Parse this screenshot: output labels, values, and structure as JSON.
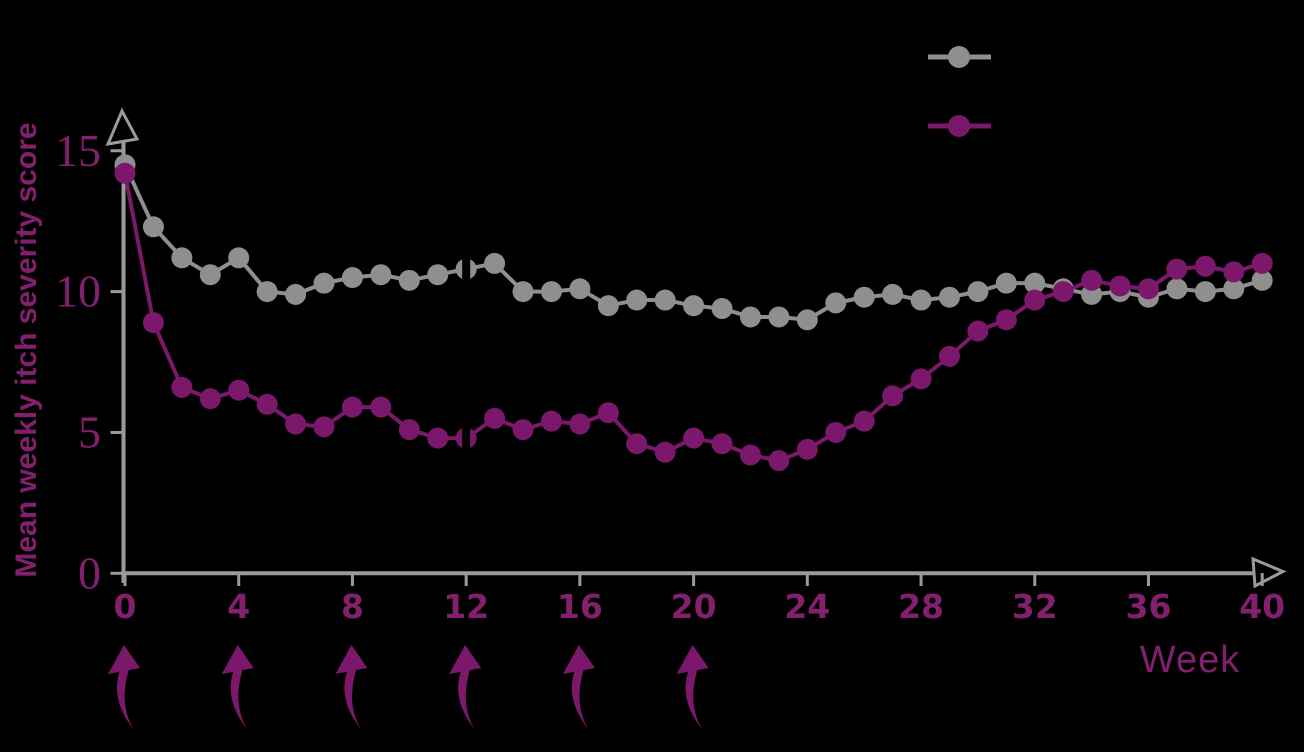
{
  "chart_data": {
    "type": "line",
    "title": "",
    "xlabel": "Week",
    "ylabel": "Mean weekly itch severity score",
    "xlim": [
      0,
      41.5
    ],
    "ylim": [
      0,
      16.4
    ],
    "x_ticks": [
      0,
      4,
      8,
      12,
      16,
      20,
      24,
      28,
      32,
      36,
      40
    ],
    "y_ticks": [
      0,
      5,
      10,
      15
    ],
    "grid": false,
    "x": [
      0,
      1,
      2,
      3,
      4,
      5,
      6,
      7,
      8,
      9,
      10,
      11,
      12,
      13,
      14,
      15,
      16,
      17,
      18,
      19,
      20,
      21,
      22,
      23,
      24,
      25,
      26,
      27,
      28,
      29,
      30,
      31,
      32,
      33,
      34,
      35,
      36,
      37,
      38,
      39,
      40
    ],
    "series": [
      {
        "name": "gray-series",
        "color": "#8f8f8f",
        "marker": "circle",
        "values": [
          14.5,
          12.3,
          11.2,
          10.6,
          11.2,
          10.0,
          9.9,
          10.3,
          10.5,
          10.6,
          10.4,
          10.6,
          10.8,
          11.0,
          10.0,
          10.0,
          10.1,
          9.5,
          9.7,
          9.7,
          9.5,
          9.4,
          9.1,
          9.1,
          9.0,
          9.6,
          9.8,
          9.9,
          9.7,
          9.8,
          10.0,
          10.3,
          10.3,
          10.1,
          9.9,
          10.0,
          9.8,
          10.1,
          10.0,
          10.1,
          10.4
        ]
      },
      {
        "name": "purple-series",
        "color": "#7c186c",
        "marker": "circle",
        "values": [
          14.2,
          8.9,
          6.6,
          6.2,
          6.5,
          6.0,
          5.3,
          5.2,
          5.9,
          5.9,
          5.1,
          4.8,
          4.8,
          5.5,
          5.1,
          5.4,
          5.3,
          5.7,
          4.6,
          4.3,
          4.8,
          4.6,
          4.2,
          4.0,
          4.4,
          5.0,
          5.4,
          6.3,
          6.9,
          7.7,
          8.6,
          9.0,
          9.7,
          10.0,
          10.4,
          10.2,
          10.1,
          10.8,
          10.9,
          10.7,
          11.0
        ]
      }
    ],
    "legend": {
      "position": "top-right",
      "entries": [
        {
          "label": "",
          "color": "#8f8f8f"
        },
        {
          "label": "",
          "color": "#7c186c"
        }
      ]
    },
    "annotations": {
      "dose_arrow_weeks": [
        0,
        4,
        8,
        12,
        16,
        20
      ],
      "dose_arrow_color": "#7c186c",
      "line_break_week": 12
    },
    "colors": {
      "background": "#000000",
      "axis": "#9a9a9a",
      "tick_text": "#82206e"
    }
  }
}
